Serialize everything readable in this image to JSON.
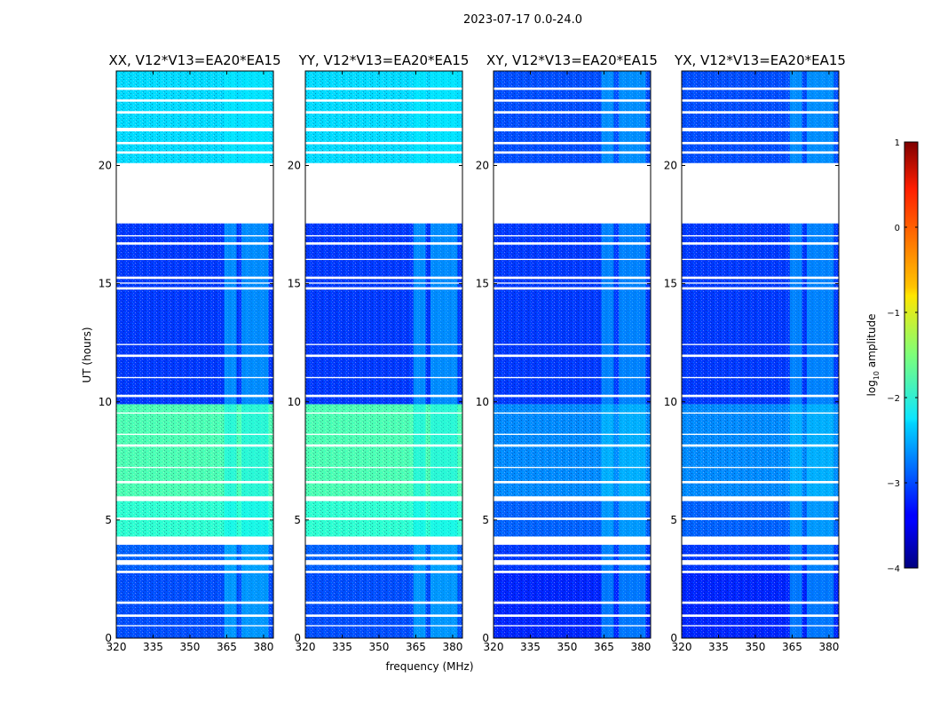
{
  "chart_data": {
    "type": "heatmap",
    "title": "2023-07-17 0.0-24.0",
    "xlabel": "frequency (MHz)",
    "ylabel": "UT (hours)",
    "xlim": [
      320,
      384
    ],
    "ylim": [
      0,
      24
    ],
    "xticks": [
      320,
      335,
      350,
      365,
      380
    ],
    "yticks": [
      0,
      5,
      10,
      15,
      20
    ],
    "colorbar": {
      "label": "log10 amplitude",
      "label_base": "log",
      "label_sub": "10",
      "label_rest": " amplitude",
      "range": [
        -4,
        1
      ],
      "ticks": [
        1,
        0,
        -1,
        -2,
        -3,
        -4
      ],
      "tick_labels": [
        "1",
        "0",
        "−1",
        "−2",
        "−3",
        "−4"
      ],
      "colormap": "jet"
    },
    "gaps_hours": [
      [
        0.5,
        0.55
      ],
      [
        0.9,
        1.0
      ],
      [
        1.45,
        1.55
      ],
      [
        2.75,
        2.85
      ],
      [
        3.1,
        3.3
      ],
      [
        3.45,
        3.55
      ],
      [
        3.95,
        4.3
      ],
      [
        5.0,
        5.1
      ],
      [
        5.8,
        6.0
      ],
      [
        6.55,
        6.65
      ],
      [
        7.2,
        7.25
      ],
      [
        8.1,
        8.2
      ],
      [
        8.6,
        8.65
      ],
      [
        9.5,
        9.55
      ],
      [
        10.2,
        10.3
      ],
      [
        11.0,
        11.05
      ],
      [
        11.9,
        12.0
      ],
      [
        12.4,
        12.45
      ],
      [
        14.75,
        14.85
      ],
      [
        15.0,
        15.05
      ],
      [
        15.2,
        15.3
      ],
      [
        16.0,
        16.05
      ],
      [
        16.65,
        16.75
      ],
      [
        17.0,
        17.05
      ],
      [
        17.55,
        20.1
      ],
      [
        20.5,
        20.6
      ],
      [
        20.9,
        21.0
      ],
      [
        21.45,
        21.6
      ],
      [
        22.2,
        22.3
      ],
      [
        22.7,
        22.8
      ],
      [
        23.2,
        23.3
      ]
    ],
    "series": [
      {
        "name": "XX",
        "title": "XX, V12*V13=EA20*EA15",
        "segments": [
          {
            "t0": 0.0,
            "t1": 2.8,
            "level": -3.0
          },
          {
            "t0": 2.8,
            "t1": 4.0,
            "level": -2.9
          },
          {
            "t0": 4.0,
            "t1": 5.8,
            "level": -1.9
          },
          {
            "t0": 5.8,
            "t1": 9.9,
            "level": -1.75
          },
          {
            "t0": 9.9,
            "t1": 17.6,
            "level": -3.1
          },
          {
            "t0": 20.1,
            "t1": 24.0,
            "level": -2.3
          }
        ],
        "rfi_bands_mhz": [
          [
            364,
            369
          ],
          [
            371,
            374
          ],
          [
            374,
            379
          ],
          [
            379,
            382
          ]
        ],
        "rfi_level": -2.2
      },
      {
        "name": "YY",
        "title": "YY, V12*V13=EA20*EA15",
        "segments": [
          {
            "t0": 0.0,
            "t1": 2.8,
            "level": -3.0
          },
          {
            "t0": 2.8,
            "t1": 4.0,
            "level": -2.9
          },
          {
            "t0": 4.0,
            "t1": 5.8,
            "level": -1.9
          },
          {
            "t0": 5.8,
            "t1": 9.9,
            "level": -1.75
          },
          {
            "t0": 9.9,
            "t1": 17.6,
            "level": -3.1
          },
          {
            "t0": 20.1,
            "t1": 24.0,
            "level": -2.3
          }
        ],
        "rfi_bands_mhz": [
          [
            364,
            369
          ],
          [
            371,
            374
          ],
          [
            374,
            379
          ],
          [
            379,
            382
          ]
        ],
        "rfi_level": -2.2
      },
      {
        "name": "XY",
        "title": "XY, V12*V13=EA20*EA15",
        "segments": [
          {
            "t0": 0.0,
            "t1": 2.8,
            "level": -3.2
          },
          {
            "t0": 2.8,
            "t1": 4.0,
            "level": -3.1
          },
          {
            "t0": 4.0,
            "t1": 5.8,
            "level": -2.9
          },
          {
            "t0": 5.8,
            "t1": 9.9,
            "level": -2.7
          },
          {
            "t0": 9.9,
            "t1": 17.6,
            "level": -3.1
          },
          {
            "t0": 20.1,
            "t1": 24.0,
            "level": -3.0
          }
        ],
        "rfi_bands_mhz": [
          [
            364,
            369
          ],
          [
            371,
            374
          ],
          [
            374,
            379
          ],
          [
            379,
            382
          ]
        ],
        "rfi_level": -2.3
      },
      {
        "name": "YX",
        "title": "YX, V12*V13=EA20*EA15",
        "segments": [
          {
            "t0": 0.0,
            "t1": 2.8,
            "level": -3.2
          },
          {
            "t0": 2.8,
            "t1": 4.0,
            "level": -3.1
          },
          {
            "t0": 4.0,
            "t1": 5.8,
            "level": -2.9
          },
          {
            "t0": 5.8,
            "t1": 9.9,
            "level": -2.7
          },
          {
            "t0": 9.9,
            "t1": 17.6,
            "level": -3.1
          },
          {
            "t0": 20.1,
            "t1": 24.0,
            "level": -3.0
          }
        ],
        "rfi_bands_mhz": [
          [
            364,
            369
          ],
          [
            371,
            374
          ],
          [
            374,
            379
          ],
          [
            379,
            382
          ]
        ],
        "rfi_level": -2.3
      }
    ]
  }
}
